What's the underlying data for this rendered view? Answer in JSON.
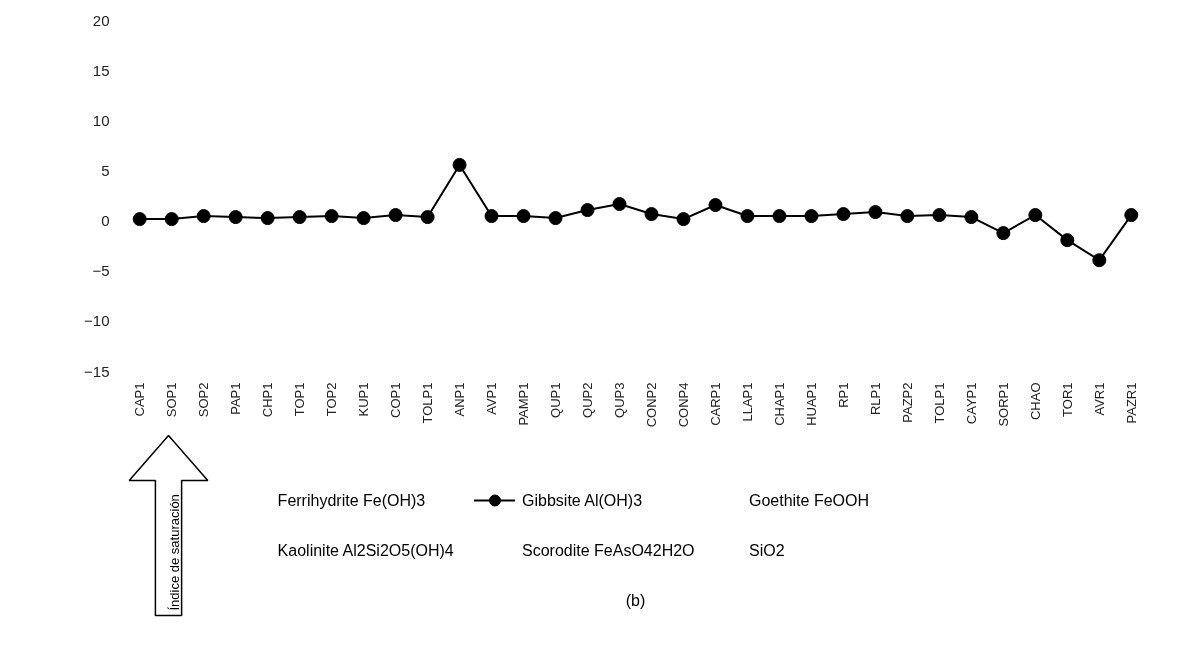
{
  "chart_data": {
    "type": "line",
    "categories": [
      "CAP1",
      "SOP1",
      "SOP2",
      "PAP1",
      "CHP1",
      "TOP1",
      "TOP2",
      "KUP1",
      "COP1",
      "TOLP1",
      "ANP1",
      "AVP1",
      "PAMP1",
      "QUP1",
      "QUP2",
      "QUP3",
      "CONP2",
      "CONP4",
      "CARP1",
      "LLAP1",
      "CHAP1",
      "HUAP1",
      "RP1",
      "RLP1",
      "PAZP2",
      "TOLP1",
      "CAYP1",
      "SORP1",
      "CHAO",
      "TOR1",
      "AVR1",
      "PAZR1"
    ],
    "series": [
      {
        "name": "Gibbsite Al(OH)3",
        "color": "#000000",
        "values": [
          0.2,
          0.2,
          0.5,
          0.4,
          0.3,
          0.4,
          0.5,
          0.3,
          0.6,
          0.4,
          5.6,
          0.5,
          0.5,
          0.3,
          1.1,
          1.7,
          0.7,
          0.2,
          1.6,
          0.5,
          0.5,
          0.5,
          0.7,
          0.9,
          0.5,
          0.6,
          0.4,
          -1.2,
          0.6,
          -1.9,
          -3.9,
          0.6
        ]
      }
    ],
    "ylim": [
      -15,
      20
    ],
    "yticks": [
      -15,
      -10,
      -5,
      0,
      5,
      10,
      15,
      20
    ],
    "grid": false,
    "marker": "circle",
    "line_style": "solid",
    "legend": "bottom",
    "annotations": [
      "Ferrihydrite Fe(OH)3",
      "Goethite FeOOH",
      "Kaolinite Al2Si2O5(OH)4",
      "Scorodite FeAsO42H2O",
      "SiO2",
      "(b)",
      "Índice de saturación"
    ]
  }
}
